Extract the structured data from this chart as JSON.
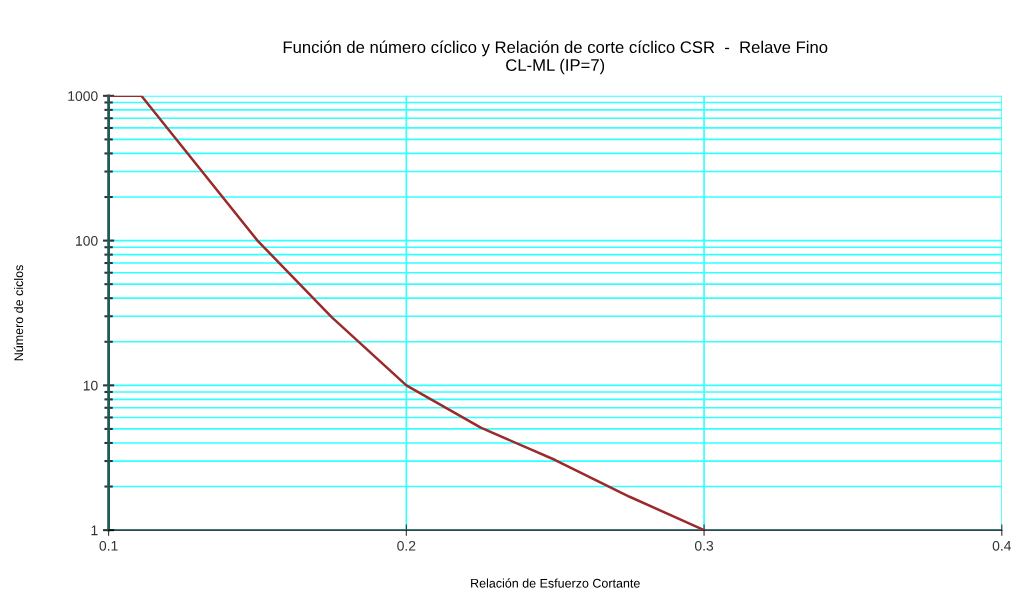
{
  "chart_data": {
    "type": "line",
    "title": "Función de número cíclico y Relación de corte cíclico CSR  -  Relave Fino\nCL-ML (IP=7)",
    "xlabel": "Relación de Esfuerzo Cortante",
    "ylabel": "Número de ciclos",
    "x": [
      0.1,
      0.111,
      0.15,
      0.175,
      0.2,
      0.225,
      0.25,
      0.275,
      0.3
    ],
    "series": [
      {
        "color": "#9b2a2a",
        "values": [
          1000,
          1000,
          100,
          29.5,
          10,
          5.1,
          3.05,
          1.7,
          1
        ]
      }
    ],
    "log": "y",
    "xlim": [
      0.1,
      0.4
    ],
    "xticks": [
      0.1,
      0.2,
      0.3,
      0.4
    ],
    "ylim": [
      1,
      1000
    ],
    "yticks": [
      1,
      10,
      100,
      1000
    ],
    "grid": true
  }
}
